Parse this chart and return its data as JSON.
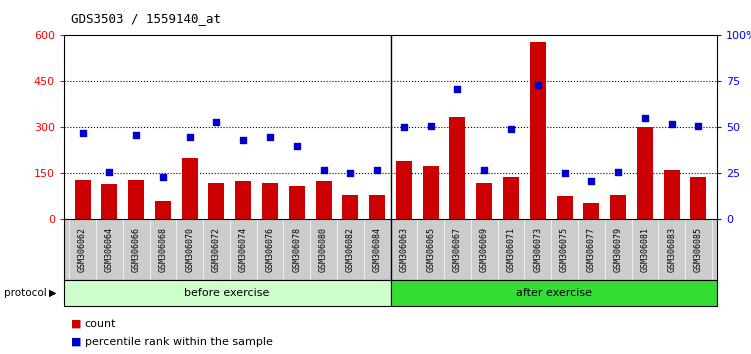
{
  "title": "GDS3503 / 1559140_at",
  "categories": [
    "GSM306062",
    "GSM306064",
    "GSM306066",
    "GSM306068",
    "GSM306070",
    "GSM306072",
    "GSM306074",
    "GSM306076",
    "GSM306078",
    "GSM306080",
    "GSM306082",
    "GSM306084",
    "GSM306063",
    "GSM306065",
    "GSM306067",
    "GSM306069",
    "GSM306071",
    "GSM306073",
    "GSM306075",
    "GSM306077",
    "GSM306079",
    "GSM306081",
    "GSM306083",
    "GSM306085"
  ],
  "counts": [
    130,
    115,
    130,
    60,
    200,
    120,
    125,
    120,
    110,
    125,
    80,
    80,
    190,
    175,
    335,
    120,
    140,
    580,
    75,
    55,
    80,
    300,
    160,
    140
  ],
  "percentile": [
    47,
    26,
    46,
    23,
    45,
    53,
    43,
    45,
    40,
    27,
    25,
    27,
    50,
    51,
    71,
    27,
    49,
    73,
    25,
    21,
    26,
    55,
    52,
    51
  ],
  "before_exercise_count": 12,
  "bar_color": "#cc0000",
  "dot_color": "#0000cc",
  "before_bg": "#ccffcc",
  "after_bg": "#33dd33",
  "label_bg": "#cccccc",
  "left_ylim": [
    0,
    600
  ],
  "right_ylim": [
    0,
    100
  ],
  "left_yticks": [
    0,
    150,
    300,
    450,
    600
  ],
  "right_yticks": [
    0,
    25,
    50,
    75,
    100
  ],
  "right_yticklabels": [
    "0",
    "25",
    "50",
    "75",
    "100%"
  ],
  "grid_yticks": [
    150,
    300,
    450
  ],
  "title_fontsize": 9,
  "bar_width": 0.6
}
